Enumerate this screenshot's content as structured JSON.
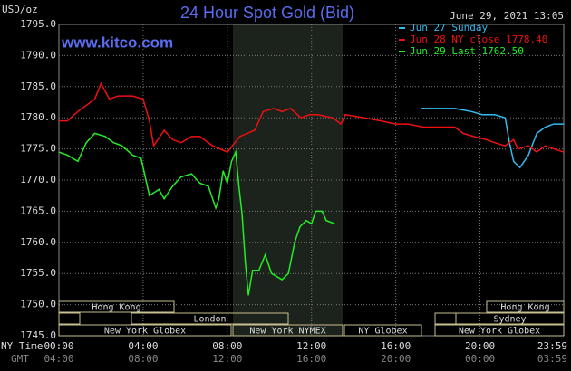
{
  "chart_data": {
    "type": "line",
    "title": "24 Hour Spot Gold (Bid)",
    "y_label": "USD/oz",
    "watermark": "www.kitco.com",
    "timestamp": "June 29, 2021 13:05",
    "x_row_label": "NY Time",
    "x2_row_label": "GMT",
    "xlim": [
      0,
      23.98
    ],
    "ylim": [
      1745,
      1795
    ],
    "xticks": [
      {
        "value": 0,
        "label": "00:00"
      },
      {
        "value": 4,
        "label": "04:00"
      },
      {
        "value": 8,
        "label": "08:00"
      },
      {
        "value": 12,
        "label": "12:00"
      },
      {
        "value": 16,
        "label": "16:00"
      },
      {
        "value": 20,
        "label": "20:00"
      },
      {
        "value": 23.98,
        "label": "23:59"
      }
    ],
    "x2ticks": [
      {
        "value": 0,
        "label": "04:00"
      },
      {
        "value": 4,
        "label": "08:00"
      },
      {
        "value": 8,
        "label": "12:00"
      },
      {
        "value": 12,
        "label": "16:00"
      },
      {
        "value": 16,
        "label": "20:00"
      },
      {
        "value": 20,
        "label": "00:00"
      },
      {
        "value": 23.98,
        "label": "03:59"
      }
    ],
    "yticks": [
      {
        "value": 1745,
        "label": "1745.0"
      },
      {
        "value": 1750,
        "label": "1750.0"
      },
      {
        "value": 1755,
        "label": "1755.0"
      },
      {
        "value": 1760,
        "label": "1760.0"
      },
      {
        "value": 1765,
        "label": "1765.0"
      },
      {
        "value": 1770,
        "label": "1770.0"
      },
      {
        "value": 1775,
        "label": "1775.0"
      },
      {
        "value": 1780,
        "label": "1780.0"
      },
      {
        "value": 1785,
        "label": "1785.0"
      },
      {
        "value": 1790,
        "label": "1790.0"
      },
      {
        "value": 1795,
        "label": "1795.0"
      }
    ],
    "grid": true,
    "sessions": [
      "Hong Kong",
      "London",
      "New York Globex",
      "New York NYMEX",
      "NY Globex",
      "Sydney",
      "Hong Kong",
      "New York Globex"
    ],
    "series": [
      {
        "name": "Jun 27 Sunday",
        "color": "#33bbee",
        "x": [
          17.2,
          18.8,
          19.6,
          20.1,
          20.7,
          21.2,
          21.4,
          21.6,
          21.9,
          22.3,
          22.7,
          23.1,
          23.5,
          23.98
        ],
        "values": [
          1781.5,
          1781.5,
          1781,
          1780.5,
          1780.5,
          1780,
          1776,
          1773,
          1772,
          1774,
          1777.5,
          1778.5,
          1779,
          1779
        ]
      },
      {
        "name": "Jun 28 NY close 1778.40",
        "color": "#ee1111",
        "x": [
          0,
          0.4,
          0.9,
          1.3,
          1.7,
          2.0,
          2.4,
          2.8,
          3.5,
          4.0,
          4.3,
          4.5,
          5.0,
          5.4,
          5.8,
          6.3,
          6.7,
          7.3,
          8.0,
          8.6,
          9.3,
          9.7,
          10.2,
          10.6,
          11.0,
          11.5,
          11.9,
          12.3,
          13.0,
          13.4,
          13.6,
          14.5,
          15.3,
          16.0,
          16.6,
          17.3,
          17.9,
          18.8,
          19.2,
          19.7,
          20.3,
          20.7,
          21.2,
          21.6,
          21.8,
          22.3,
          22.7,
          23.1,
          23.5,
          23.98
        ],
        "values": [
          1779.5,
          1779.5,
          1781,
          1782,
          1783,
          1785.5,
          1783,
          1783.5,
          1783.5,
          1783,
          1779.5,
          1775.5,
          1778,
          1776.5,
          1776,
          1777,
          1777,
          1775.5,
          1774.5,
          1777,
          1778,
          1781,
          1781.5,
          1781,
          1781.5,
          1780,
          1780.5,
          1780.5,
          1780,
          1779,
          1780.5,
          1780,
          1779.5,
          1779,
          1779,
          1778.5,
          1778.5,
          1778.5,
          1777.5,
          1777,
          1776.5,
          1776,
          1775.5,
          1776.5,
          1775,
          1775.5,
          1774.5,
          1775.5,
          1775,
          1774.5
        ]
      },
      {
        "name": "Jun 29 Last 1762.50",
        "color": "#22ee22",
        "x": [
          0,
          0.4,
          0.9,
          1.3,
          1.7,
          2.2,
          2.6,
          3.0,
          3.5,
          3.9,
          4.1,
          4.3,
          4.75,
          5.0,
          5.4,
          5.8,
          6.3,
          6.7,
          7.1,
          7.45,
          7.6,
          7.8,
          8.0,
          8.2,
          8.4,
          8.55,
          8.7,
          8.85,
          9.0,
          9.2,
          9.5,
          9.8,
          10.1,
          10.6,
          10.9,
          11.2,
          11.45,
          11.75,
          12.0,
          12.2,
          12.5,
          12.7,
          13.1
        ],
        "values": [
          1774.5,
          1774,
          1773,
          1776,
          1777.5,
          1777,
          1776,
          1775.5,
          1774,
          1773.5,
          1770.5,
          1767.5,
          1768.5,
          1767,
          1769,
          1770.5,
          1771,
          1769.5,
          1769,
          1765.5,
          1767,
          1771.5,
          1769.5,
          1773,
          1774.5,
          1769,
          1764.5,
          1757,
          1751.5,
          1755.5,
          1755.5,
          1758,
          1755,
          1754,
          1755,
          1760,
          1762.5,
          1763.5,
          1763,
          1765,
          1765,
          1763.5,
          1763
        ]
      }
    ]
  }
}
